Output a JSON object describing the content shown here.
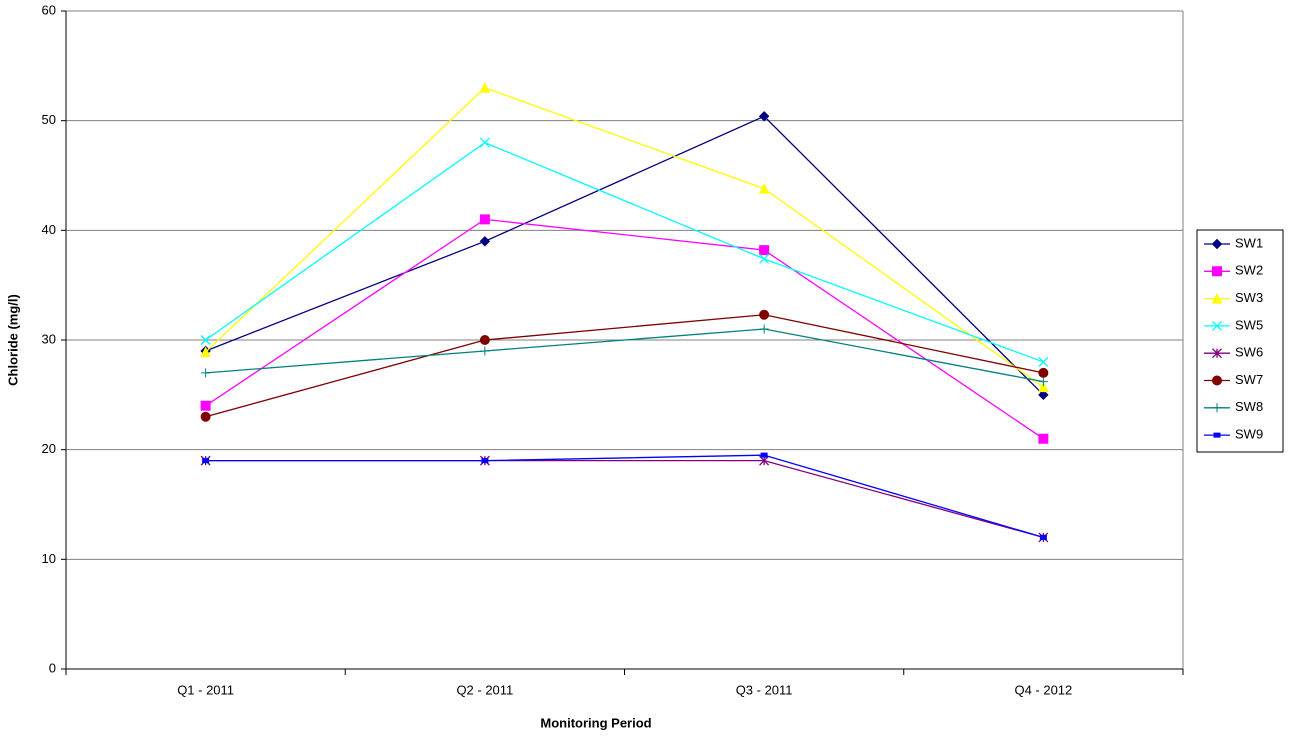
{
  "chart_data": {
    "type": "line",
    "xlabel": "Monitoring Period",
    "ylabel": "Chloride (mg/l)",
    "categories": [
      "Q1 - 2011",
      "Q2 - 2011",
      "Q3 - 2011",
      "Q4 - 2012"
    ],
    "ylim": [
      0,
      60
    ],
    "yticks": [
      0,
      10,
      20,
      30,
      40,
      50,
      60
    ],
    "grid": true,
    "legend": "right",
    "series": [
      {
        "name": "SW1",
        "color": "#000080",
        "marker": "diamond",
        "values": [
          29,
          39,
          50.4,
          25
        ]
      },
      {
        "name": "SW2",
        "color": "#ff00ff",
        "marker": "square",
        "values": [
          24,
          41,
          38.2,
          21
        ]
      },
      {
        "name": "SW3",
        "color": "#ffff00",
        "marker": "triangle",
        "values": [
          28.9,
          53,
          43.8,
          25.7
        ]
      },
      {
        "name": "SW5",
        "color": "#00ffff",
        "marker": "x",
        "values": [
          30,
          48,
          37.4,
          28
        ]
      },
      {
        "name": "SW6",
        "color": "#800080",
        "marker": "star",
        "values": [
          19,
          19,
          19,
          12
        ]
      },
      {
        "name": "SW7",
        "color": "#800000",
        "marker": "circle",
        "values": [
          23,
          30,
          32.3,
          27
        ]
      },
      {
        "name": "SW8",
        "color": "#008080",
        "marker": "plus",
        "values": [
          27,
          29,
          31,
          26.2
        ]
      },
      {
        "name": "SW9",
        "color": "#0000ff",
        "marker": "dash",
        "values": [
          19,
          19,
          19.5,
          12
        ]
      }
    ]
  }
}
